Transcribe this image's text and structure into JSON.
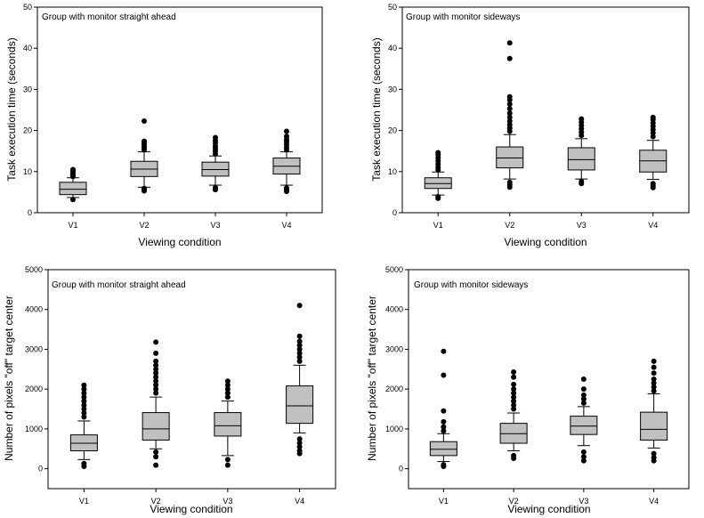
{
  "chart_data": [
    {
      "type": "boxplot",
      "title": "Group with monitor straight ahead",
      "xlabel": "Viewing condition",
      "ylabel": "Task execution time (seconds)",
      "ylim": [
        0,
        50
      ],
      "yticks": [
        0,
        10,
        20,
        30,
        40,
        50
      ],
      "categories": [
        "V1",
        "V2",
        "V3",
        "V4"
      ],
      "series": [
        {
          "q1": 4.4,
          "median": 5.7,
          "q3": 7.4,
          "whisker_low": 3.7,
          "whisker_high": 8.5,
          "outliers": [
            3.2,
            8.8,
            9.1,
            9.4,
            9.8,
            10.2,
            10.5
          ]
        },
        {
          "q1": 8.8,
          "median": 10.6,
          "q3": 12.5,
          "whisker_low": 6.2,
          "whisker_high": 14.8,
          "outliers": [
            5.3,
            5.6,
            5.9,
            15.3,
            15.8,
            16.2,
            16.6,
            17.0,
            17.4,
            22.3
          ]
        },
        {
          "q1": 8.9,
          "median": 10.5,
          "q3": 12.3,
          "whisker_low": 6.7,
          "whisker_high": 13.8,
          "outliers": [
            5.6,
            6.1,
            14.3,
            15.0,
            15.6,
            16.2,
            17.0,
            17.6,
            18.3
          ]
        },
        {
          "q1": 9.4,
          "median": 11.3,
          "q3": 13.3,
          "whisker_low": 6.7,
          "whisker_high": 14.8,
          "outliers": [
            5.2,
            5.6,
            6.0,
            15.3,
            15.9,
            16.6,
            17.2,
            17.8,
            18.6,
            19.8
          ]
        }
      ]
    },
    {
      "type": "boxplot",
      "title": "Group with monitor sideways",
      "xlabel": "Viewing condition",
      "ylabel": "Task execution time (seconds)",
      "ylim": [
        0,
        50
      ],
      "yticks": [
        0,
        10,
        20,
        30,
        40,
        50
      ],
      "categories": [
        "V1",
        "V2",
        "V3",
        "V4"
      ],
      "series": [
        {
          "q1": 5.9,
          "median": 7.1,
          "q3": 8.5,
          "whisker_low": 4.3,
          "whisker_high": 9.9,
          "outliers": [
            3.5,
            3.9,
            10.4,
            11.0,
            11.8,
            12.6,
            13.4,
            14.1,
            14.6
          ]
        },
        {
          "q1": 10.9,
          "median": 13.3,
          "q3": 16.0,
          "whisker_low": 8.2,
          "whisker_high": 19.0,
          "outliers": [
            6.2,
            6.8,
            7.4,
            19.8,
            20.6,
            21.4,
            22.3,
            23.2,
            24.2,
            25.3,
            26.4,
            27.4,
            28.2,
            37.5,
            41.3
          ]
        },
        {
          "q1": 10.4,
          "median": 12.9,
          "q3": 15.8,
          "whisker_low": 8.2,
          "whisker_high": 18.0,
          "outliers": [
            7.1,
            7.6,
            18.8,
            19.6,
            20.4,
            21.2,
            22.0,
            22.8
          ]
        },
        {
          "q1": 9.9,
          "median": 12.6,
          "q3": 15.2,
          "whisker_low": 8.1,
          "whisker_high": 17.6,
          "outliers": [
            6.1,
            6.6,
            7.1,
            18.5,
            19.4,
            20.2,
            21.0,
            21.8,
            22.7,
            23.2
          ]
        }
      ]
    },
    {
      "type": "boxplot",
      "title": "Group with monitor straight ahead",
      "xlabel": "Viewing condition",
      "ylabel": "Number of pixels \"off\" target center",
      "ylim": [
        -500,
        5000
      ],
      "yticks": [
        0,
        1000,
        2000,
        3000,
        4000,
        5000
      ],
      "categories": [
        "V1",
        "V2",
        "V3",
        "V4"
      ],
      "series": [
        {
          "q1": 450,
          "median": 640,
          "q3": 850,
          "whisker_low": 230,
          "whisker_high": 1200,
          "outliers": [
            60,
            130,
            1300,
            1400,
            1500,
            1600,
            1700,
            1800,
            1900,
            2000,
            2100
          ]
        },
        {
          "q1": 720,
          "median": 1000,
          "q3": 1410,
          "whisker_low": 500,
          "whisker_high": 1800,
          "outliers": [
            90,
            300,
            420,
            1900,
            2000,
            2100,
            2200,
            2300,
            2400,
            2500,
            2600,
            2700,
            2900,
            3180
          ]
        },
        {
          "q1": 820,
          "median": 1080,
          "q3": 1410,
          "whisker_low": 330,
          "whisker_high": 1700,
          "outliers": [
            90,
            230,
            1800,
            1900,
            2000,
            2100,
            2200
          ]
        },
        {
          "q1": 1140,
          "median": 1580,
          "q3": 2080,
          "whisker_low": 900,
          "whisker_high": 2600,
          "outliers": [
            380,
            450,
            550,
            650,
            750,
            2700,
            2800,
            2900,
            3000,
            3100,
            3200,
            3330,
            4100
          ]
        }
      ]
    },
    {
      "type": "boxplot",
      "title": "Group with monitor sideways",
      "xlabel": "Viewing condition",
      "ylabel": "Number of pixels \"off\" target center",
      "ylim": [
        -500,
        5000
      ],
      "yticks": [
        0,
        1000,
        2000,
        3000,
        4000,
        5000
      ],
      "categories": [
        "V1",
        "V2",
        "V3",
        "V4"
      ],
      "series": [
        {
          "q1": 330,
          "median": 490,
          "q3": 680,
          "whisker_low": 180,
          "whisker_high": 880,
          "outliers": [
            60,
            100,
            950,
            1050,
            1180,
            1450,
            2350,
            2950
          ]
        },
        {
          "q1": 640,
          "median": 880,
          "q3": 1140,
          "whisker_low": 450,
          "whisker_high": 1400,
          "outliers": [
            260,
            330,
            1500,
            1600,
            1700,
            1800,
            1900,
            2000,
            2120,
            2300,
            2430
          ]
        },
        {
          "q1": 860,
          "median": 1070,
          "q3": 1320,
          "whisker_low": 580,
          "whisker_high": 1560,
          "outliers": [
            200,
            300,
            420,
            1650,
            1750,
            1850,
            2000,
            2250
          ]
        },
        {
          "q1": 720,
          "median": 990,
          "q3": 1420,
          "whisker_low": 520,
          "whisker_high": 1880,
          "outliers": [
            200,
            280,
            380,
            1950,
            2050,
            2150,
            2250,
            2400,
            2550,
            2700
          ]
        }
      ]
    }
  ]
}
